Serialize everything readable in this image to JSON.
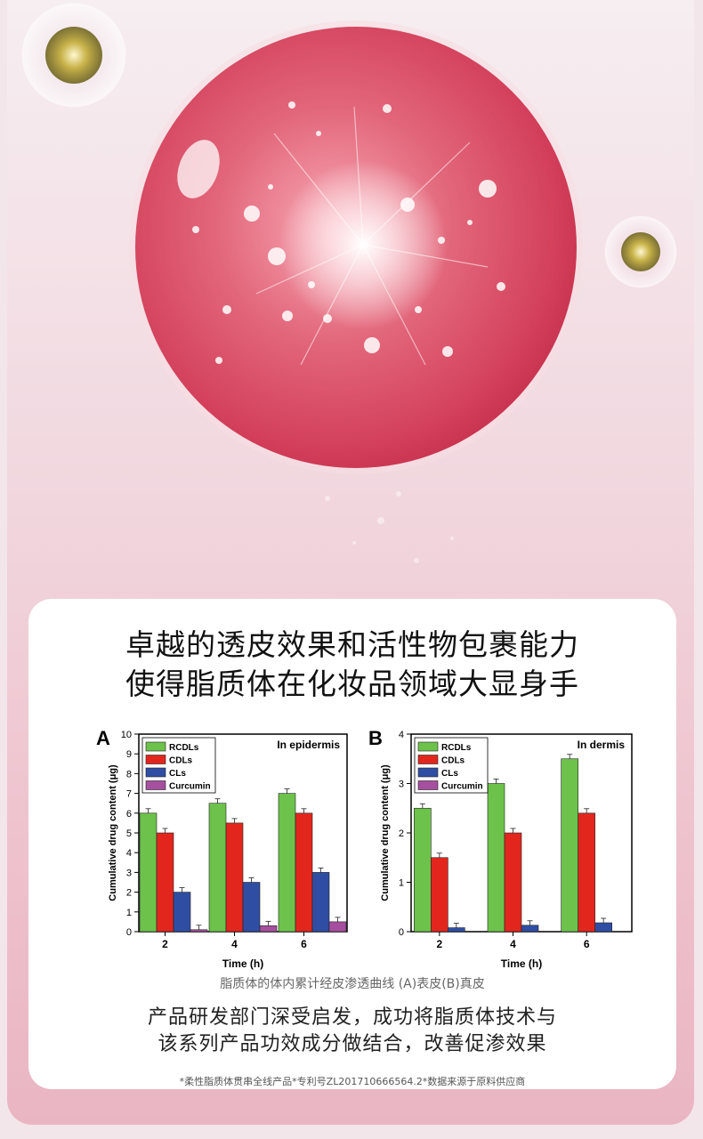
{
  "headline": {
    "line1": "卓越的透皮效果和活性物包裹能力",
    "line2": "使得脂质体在化妆品领域大显身手"
  },
  "caption": "脂质体的体内累计经皮渗透曲线 (A)表皮(B)真皮",
  "body": {
    "line1": "产品研发部门深受启发，成功将脂质体技术与",
    "line2": "该系列产品功效成分做结合，改善促渗效果"
  },
  "footnote": "*柔性脂质体贯串全线产品*专利号ZL201710666564.2*数据来源于原料供应商",
  "colors": {
    "RCDLs": "#6cc24a",
    "CDLs": "#e2261e",
    "CLs": "#2f4ea3",
    "Curcumin": "#a54f9e"
  },
  "chart_data": [
    {
      "type": "bar",
      "panel_label": "A",
      "annotation": "In epidermis",
      "xlabel": "Time (h)",
      "ylabel": "Cumulative drug content (μg)",
      "categories": [
        "2",
        "4",
        "6"
      ],
      "ylim": [
        0,
        10
      ],
      "yticks": [
        "0",
        "1",
        "2",
        "3",
        "4",
        "5",
        "6",
        "7",
        "8",
        "9",
        "10"
      ],
      "legend_position": "top-left",
      "series": [
        {
          "name": "RCDLs",
          "values": [
            6.0,
            6.5,
            7.0
          ]
        },
        {
          "name": "CDLs",
          "values": [
            5.0,
            5.5,
            6.0
          ]
        },
        {
          "name": "CLs",
          "values": [
            2.0,
            2.5,
            3.0
          ]
        },
        {
          "name": "Curcumin",
          "values": [
            0.1,
            0.3,
            0.5
          ]
        }
      ]
    },
    {
      "type": "bar",
      "panel_label": "B",
      "annotation": "In dermis",
      "xlabel": "Time (h)",
      "ylabel": "Cumulative drug content (μg)",
      "categories": [
        "2",
        "4",
        "6"
      ],
      "ylim": [
        0,
        4
      ],
      "yticks": [
        "0",
        "1",
        "2",
        "3",
        "4"
      ],
      "legend_position": "top-left",
      "series": [
        {
          "name": "RCDLs",
          "values": [
            2.5,
            3.0,
            3.5
          ]
        },
        {
          "name": "CDLs",
          "values": [
            1.5,
            2.0,
            2.4
          ]
        },
        {
          "name": "CLs",
          "values": [
            0.08,
            0.13,
            0.18
          ]
        },
        {
          "name": "Curcumin",
          "values": [
            0,
            0,
            0
          ]
        }
      ]
    }
  ]
}
